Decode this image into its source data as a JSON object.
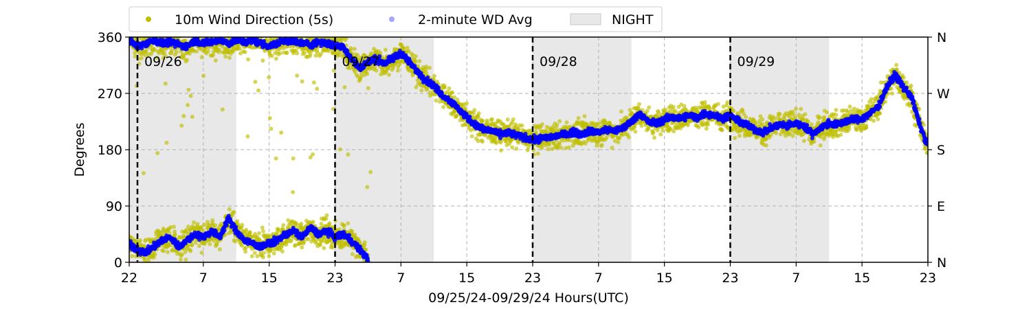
{
  "chart_data": {
    "type": "scatter",
    "xlabel": "09/25/24-09/29/24  Hours(UTC)",
    "ylabel": "Degrees",
    "x_unit": "hours UTC",
    "x_range_hours": [
      0,
      97
    ],
    "ylim": [
      0,
      360
    ],
    "y_ticks": [
      0,
      90,
      180,
      270,
      360
    ],
    "x_ticks": [
      {
        "hour": 0,
        "label": "22"
      },
      {
        "hour": 9,
        "label": "7"
      },
      {
        "hour": 17,
        "label": "15"
      },
      {
        "hour": 25,
        "label": "23"
      },
      {
        "hour": 33,
        "label": "7"
      },
      {
        "hour": 41,
        "label": "15"
      },
      {
        "hour": 49,
        "label": "23"
      },
      {
        "hour": 57,
        "label": "7"
      },
      {
        "hour": 65,
        "label": "15"
      },
      {
        "hour": 73,
        "label": "23"
      },
      {
        "hour": 81,
        "label": "7"
      },
      {
        "hour": 89,
        "label": "15"
      },
      {
        "hour": 97,
        "label": "23"
      }
    ],
    "right_axis": [
      {
        "value": 0,
        "label": "N"
      },
      {
        "value": 90,
        "label": "E"
      },
      {
        "value": 180,
        "label": "S"
      },
      {
        "value": 270,
        "label": "W"
      },
      {
        "value": 360,
        "label": "N"
      }
    ],
    "grid": true,
    "legend_position": "top-left, above plot",
    "day_markers": [
      {
        "hour": 1,
        "label": "09/26"
      },
      {
        "hour": 25,
        "label": "09/27"
      },
      {
        "hour": 49,
        "label": "09/28"
      },
      {
        "hour": 73,
        "label": "09/29"
      }
    ],
    "night_periods": [
      [
        0,
        13
      ],
      [
        25,
        37
      ],
      [
        49,
        61
      ],
      [
        73,
        85
      ]
    ],
    "legend": {
      "wd5s": "10m Wind Direction (5s)",
      "wd2m": "2-minute WD Avg",
      "night": "NIGHT"
    },
    "colors": {
      "wd5s": "#bfbf00",
      "wd2m": "#0000ff",
      "night": "#e8e8e8",
      "grid": "#b0b0b0"
    },
    "series": [
      {
        "name": "2-minute WD Avg",
        "color": "#0000ff",
        "segments": [
          [
            [
              0,
              30
            ],
            [
              1,
              20
            ],
            [
              2,
              15
            ],
            [
              3,
              25
            ],
            [
              4,
              35
            ],
            [
              5,
              40
            ],
            [
              6,
              25
            ],
            [
              7,
              35
            ],
            [
              8,
              45
            ],
            [
              9,
              40
            ],
            [
              10,
              50
            ],
            [
              11,
              40
            ],
            [
              12,
              70
            ],
            [
              13,
              50
            ],
            [
              14,
              35
            ],
            [
              15,
              30
            ],
            [
              16,
              25
            ],
            [
              17,
              30
            ],
            [
              18,
              35
            ],
            [
              19,
              45
            ],
            [
              20,
              50
            ],
            [
              21,
              40
            ],
            [
              22,
              55
            ],
            [
              23,
              45
            ],
            [
              24,
              50
            ],
            [
              25,
              40
            ],
            [
              26,
              45
            ],
            [
              27,
              35
            ],
            [
              28,
              20
            ],
            [
              29,
              5
            ]
          ],
          [
            [
              0,
              355
            ],
            [
              1,
              345
            ],
            [
              2,
              350
            ],
            [
              3,
              355
            ],
            [
              4,
              350
            ],
            [
              5,
              352
            ],
            [
              6,
              348
            ],
            [
              7,
              345
            ],
            [
              8,
              355
            ],
            [
              9,
              350
            ],
            [
              10,
              352
            ],
            [
              11,
              355
            ],
            [
              12,
              350
            ],
            [
              13,
              355
            ],
            [
              14,
              352
            ],
            [
              15,
              355
            ],
            [
              16,
              350
            ],
            [
              17,
              345
            ],
            [
              18,
              350
            ],
            [
              19,
              355
            ],
            [
              20,
              352
            ],
            [
              21,
              350
            ],
            [
              22,
              348
            ],
            [
              23,
              352
            ],
            [
              24,
              350
            ],
            [
              25,
              345
            ],
            [
              26,
              345
            ],
            [
              27,
              325
            ],
            [
              28,
              310
            ],
            [
              29,
              320
            ],
            [
              30,
              325
            ],
            [
              31,
              318
            ],
            [
              32,
              325
            ],
            [
              33,
              335
            ],
            [
              34,
              320
            ],
            [
              35,
              305
            ],
            [
              36,
              292
            ],
            [
              37,
              282
            ],
            [
              38,
              268
            ],
            [
              39,
              258
            ],
            [
              40,
              245
            ],
            [
              41,
              232
            ],
            [
              42,
              220
            ],
            [
              43,
              212
            ],
            [
              44,
              210
            ],
            [
              45,
              205
            ],
            [
              46,
              208
            ],
            [
              47,
              203
            ],
            [
              48,
              200
            ],
            [
              49,
              195
            ],
            [
              50,
              198
            ],
            [
              51,
              200
            ],
            [
              52,
              202
            ],
            [
              53,
              205
            ],
            [
              54,
              208
            ],
            [
              55,
              205
            ],
            [
              56,
              210
            ],
            [
              57,
              208
            ],
            [
              58,
              212
            ],
            [
              59,
              210
            ],
            [
              60,
              215
            ],
            [
              61,
              225
            ],
            [
              62,
              238
            ],
            [
              63,
              225
            ],
            [
              64,
              222
            ],
            [
              65,
              228
            ],
            [
              66,
              232
            ],
            [
              67,
              230
            ],
            [
              68,
              235
            ],
            [
              69,
              232
            ],
            [
              70,
              238
            ],
            [
              71,
              235
            ],
            [
              72,
              230
            ],
            [
              73,
              235
            ],
            [
              74,
              225
            ],
            [
              75,
              220
            ],
            [
              76,
              212
            ],
            [
              77,
              208
            ],
            [
              78,
              215
            ],
            [
              79,
              220
            ],
            [
              80,
              218
            ],
            [
              81,
              222
            ],
            [
              82,
              218
            ],
            [
              83,
              205
            ],
            [
              84,
              215
            ],
            [
              85,
              222
            ],
            [
              86,
              220
            ],
            [
              87,
              225
            ],
            [
              88,
              228
            ],
            [
              89,
              230
            ],
            [
              90,
              238
            ],
            [
              91,
              250
            ],
            [
              92,
              280
            ],
            [
              93,
              300
            ],
            [
              94,
              280
            ],
            [
              95,
              265
            ],
            [
              96,
              220
            ],
            [
              97,
              185
            ]
          ]
        ]
      },
      {
        "name": "10m Wind Direction (5s)",
        "color": "#bfbf00",
        "spread": 35
      }
    ]
  }
}
